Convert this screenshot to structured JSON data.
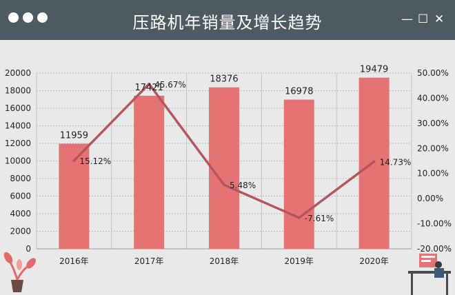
{
  "window": {
    "title": "压路机年销量及增长趋势",
    "controls": [
      "—",
      "☐",
      "✕"
    ]
  },
  "colors": {
    "titlebar": "#4d5a62",
    "bar": "#e57373",
    "line": "#b5565e",
    "background": "#e9e9e9"
  },
  "chart_data": {
    "type": "bar",
    "categories": [
      "2016年",
      "2017年",
      "2018年",
      "2019年",
      "2020年"
    ],
    "series": [
      {
        "type": "bar",
        "values": [
          11959,
          17421,
          18376,
          16978,
          19479
        ],
        "labels": [
          "11959",
          "17421",
          "18376",
          "16978",
          "19479"
        ]
      },
      {
        "type": "line",
        "values": [
          15.12,
          45.67,
          5.48,
          -7.61,
          14.73
        ],
        "labels": [
          "15.12%",
          "45.67%",
          "5.48%",
          "-7.61%",
          "14.73%"
        ]
      }
    ],
    "ylim": [
      0,
      20000
    ],
    "yticks": [
      "0",
      "2000",
      "4000",
      "6000",
      "8000",
      "10000",
      "12000",
      "14000",
      "16000",
      "18000",
      "20000"
    ],
    "y2lim": [
      -20,
      50
    ],
    "y2ticks": [
      "-20.00%",
      "-10.00%",
      "0.00%",
      "10.00%",
      "20.00%",
      "30.00%",
      "40.00%",
      "50.00%"
    ],
    "grid": true
  }
}
